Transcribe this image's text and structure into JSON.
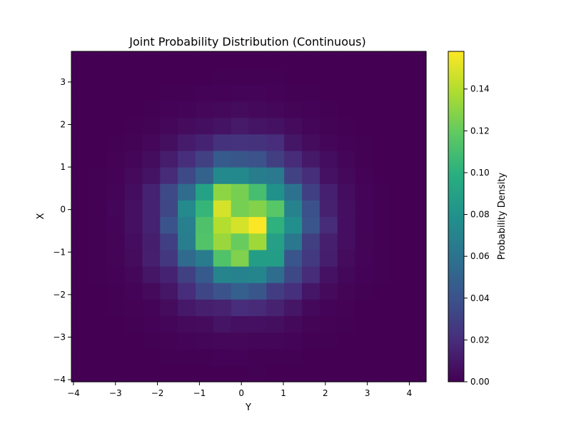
{
  "chart_data": {
    "type": "heatmap",
    "title": "Joint Probability Distribution (Continuous)",
    "xlabel": "Y",
    "ylabel": "X",
    "colorbar_label": "Probability Density",
    "colormap": "viridis",
    "xlim": [
      -4.05,
      4.4
    ],
    "ylim": [
      -4.05,
      3.72
    ],
    "color_range": [
      0,
      0.158
    ],
    "x_ticks": [
      -4,
      -3,
      -2,
      -1,
      0,
      1,
      2,
      3,
      4
    ],
    "y_ticks": [
      -4,
      -3,
      -2,
      -1,
      0,
      1,
      2,
      3
    ],
    "colorbar_ticks": [
      0.0,
      0.02,
      0.04,
      0.06,
      0.08,
      0.1,
      0.12,
      0.14
    ],
    "x_tick_labels": [
      "−4",
      "−3",
      "−2",
      "−1",
      "0",
      "1",
      "2",
      "3",
      "4"
    ],
    "y_tick_labels": [
      "−4",
      "−3",
      "−2",
      "−1",
      "0",
      "1",
      "2",
      "3"
    ],
    "colorbar_tick_labels": [
      "0.00",
      "0.02",
      "0.04",
      "0.06",
      "0.08",
      "0.10",
      "0.12",
      "0.14"
    ],
    "x_bins": {
      "start": -4.05,
      "step": 0.4225,
      "count": 20
    },
    "y_bins": {
      "start": -4.05,
      "step": 0.3885,
      "count": 20
    },
    "density_peak": {
      "x_center": -0.05,
      "y_center": -0.3,
      "sigma_x": 1.0,
      "sigma_y": 0.98,
      "max": 0.158
    },
    "grid": false,
    "colorbar_position": "right"
  }
}
